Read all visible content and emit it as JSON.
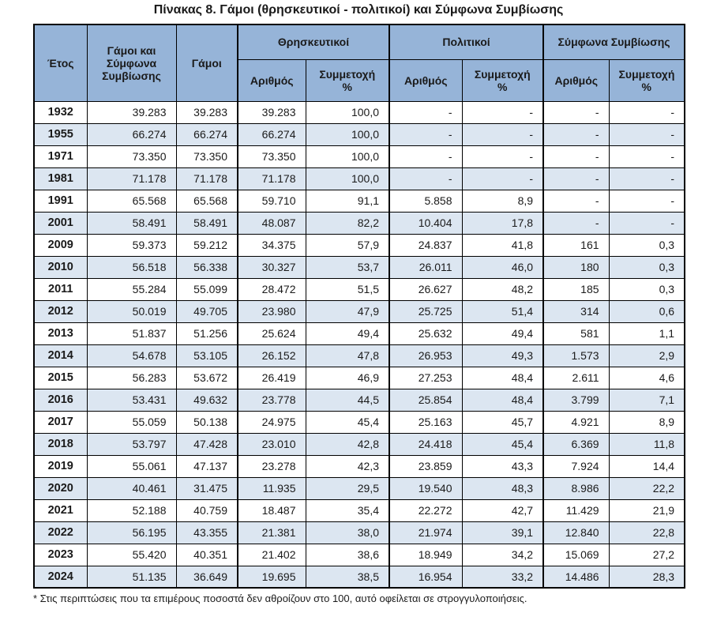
{
  "title": "Πίνακας 8. Γάμοι (θρησκευτικοί - πολιτικοί) και Σύμφωνα Συμβίωσης",
  "colors": {
    "header_bg": "#96B4D8",
    "stripe_bg": "#DCE6F1",
    "border": "#000000",
    "text": "#1a1a1a"
  },
  "table": {
    "header": {
      "year": "Έτος",
      "total": "Γάμοι και Σύμφωνα Συμβίωσης",
      "marriages": "Γάμοι",
      "groups": [
        {
          "label": "Θρησκευτικοί",
          "cols": [
            "Αριθμός",
            "Συμμετοχή %"
          ]
        },
        {
          "label": "Πολιτικοί",
          "cols": [
            "Αριθμός",
            "Συμμετοχή %"
          ]
        },
        {
          "label": "Σύμφωνα Συμβίωσης",
          "cols": [
            "Αριθμός",
            "Συμμετοχή %"
          ]
        }
      ]
    },
    "rows": [
      [
        "1932",
        "39.283",
        "39.283",
        "39.283",
        "100,0",
        "-",
        "-",
        "-",
        "-"
      ],
      [
        "1955",
        "66.274",
        "66.274",
        "66.274",
        "100,0",
        "-",
        "-",
        "-",
        "-"
      ],
      [
        "1971",
        "73.350",
        "73.350",
        "73.350",
        "100,0",
        "-",
        "-",
        "-",
        "-"
      ],
      [
        "1981",
        "71.178",
        "71.178",
        "71.178",
        "100,0",
        "-",
        "-",
        "-",
        "-"
      ],
      [
        "1991",
        "65.568",
        "65.568",
        "59.710",
        "91,1",
        "5.858",
        "8,9",
        "-",
        "-"
      ],
      [
        "2001",
        "58.491",
        "58.491",
        "48.087",
        "82,2",
        "10.404",
        "17,8",
        "-",
        "-"
      ],
      [
        "2009",
        "59.373",
        "59.212",
        "34.375",
        "57,9",
        "24.837",
        "41,8",
        "161",
        "0,3"
      ],
      [
        "2010",
        "56.518",
        "56.338",
        "30.327",
        "53,7",
        "26.011",
        "46,0",
        "180",
        "0,3"
      ],
      [
        "2011",
        "55.284",
        "55.099",
        "28.472",
        "51,5",
        "26.627",
        "48,2",
        "185",
        "0,3"
      ],
      [
        "2012",
        "50.019",
        "49.705",
        "23.980",
        "47,9",
        "25.725",
        "51,4",
        "314",
        "0,6"
      ],
      [
        "2013",
        "51.837",
        "51.256",
        "25.624",
        "49,4",
        "25.632",
        "49,4",
        "581",
        "1,1"
      ],
      [
        "2014",
        "54.678",
        "53.105",
        "26.152",
        "47,8",
        "26.953",
        "49,3",
        "1.573",
        "2,9"
      ],
      [
        "2015",
        "56.283",
        "53.672",
        "26.419",
        "46,9",
        "27.253",
        "48,4",
        "2.611",
        "4,6"
      ],
      [
        "2016",
        "53.431",
        "49.632",
        "23.778",
        "44,5",
        "25.854",
        "48,4",
        "3.799",
        "7,1"
      ],
      [
        "2017",
        "55.059",
        "50.138",
        "24.975",
        "45,4",
        "25.163",
        "45,7",
        "4.921",
        "8,9"
      ],
      [
        "2018",
        "53.797",
        "47.428",
        "23.010",
        "42,8",
        "24.418",
        "45,4",
        "6.369",
        "11,8"
      ],
      [
        "2019",
        "55.061",
        "47.137",
        "23.278",
        "42,3",
        "23.859",
        "43,3",
        "7.924",
        "14,4"
      ],
      [
        "2020",
        "40.461",
        "31.475",
        "11.935",
        "29,5",
        "19.540",
        "48,3",
        "8.986",
        "22,2"
      ],
      [
        "2021",
        "52.188",
        "40.759",
        "18.487",
        "35,4",
        "22.272",
        "42,7",
        "11.429",
        "21,9"
      ],
      [
        "2022",
        "56.195",
        "43.355",
        "21.381",
        "38,0",
        "21.974",
        "39,1",
        "12.840",
        "22,8"
      ],
      [
        "2023",
        "55.420",
        "40.351",
        "21.402",
        "38,6",
        "18.949",
        "34,2",
        "15.069",
        "27,2"
      ],
      [
        "2024",
        "51.135",
        "36.649",
        "19.695",
        "38,5",
        "16.954",
        "33,2",
        "14.486",
        "28,3"
      ]
    ]
  },
  "footnote": "* Στις περιπτώσεις που τα επιμέρους ποσοστά δεν αθροίζουν στο 100, αυτό οφείλεται σε στρογγυλοποιήσεις."
}
